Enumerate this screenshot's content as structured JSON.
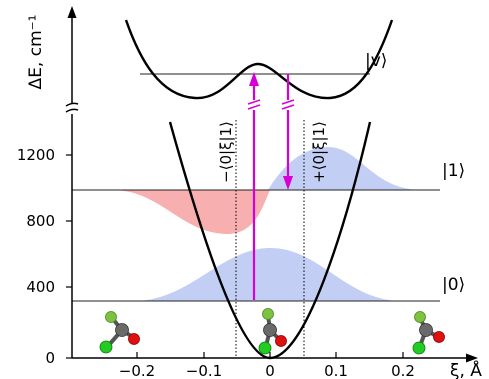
{
  "axes": {
    "y_label": "ΔE, cm⁻¹",
    "x_label": "ξ, Å",
    "y_ticks": [
      "0",
      "400",
      "800",
      "1200"
    ],
    "x_ticks": [
      "−0.2",
      "−0.1",
      "0",
      "0.1",
      "0.2"
    ]
  },
  "states": {
    "ground": "|0⟩",
    "first": "|1⟩",
    "vib": "|v⟩"
  },
  "annotations": {
    "minus_label": "−⟨0|ξ|1⟩",
    "plus_label": "+⟨0|ξ|1⟩"
  },
  "colors": {
    "blue_fill": "#b9c5f3",
    "red_fill": "#f7a6a6",
    "arrow": "#d600d6",
    "curve": "#000000"
  }
}
